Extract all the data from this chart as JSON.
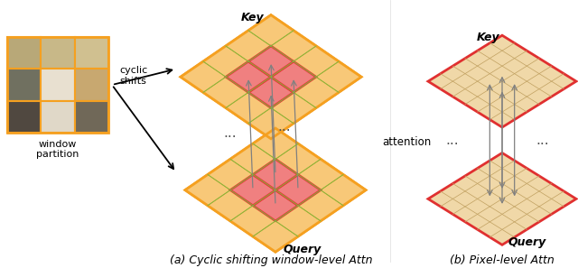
{
  "caption_a": "(a) Cyclic shifting window-level Attn",
  "caption_b": "(b) Pixel-level Attn",
  "label_window_partition": "window\npartition",
  "label_cyclic_shifts": "cyclic\nshifts",
  "label_attention": "attention",
  "label_query": "Query",
  "label_key": "Key",
  "bg_color": "#ffffff",
  "orange_border": "#F5A020",
  "light_orange_fill": "#F8C878",
  "green_fill": "#B8E090",
  "red_highlight": "#E83030",
  "red_fill": "#F08080",
  "grid_line_green": "#80B840",
  "grid_line_orange": "#D09030",
  "arrow_color": "#606060",
  "caption_fontsize": 9,
  "label_fontsize": 8.5,
  "fig_width": 6.4,
  "fig_height": 2.97
}
